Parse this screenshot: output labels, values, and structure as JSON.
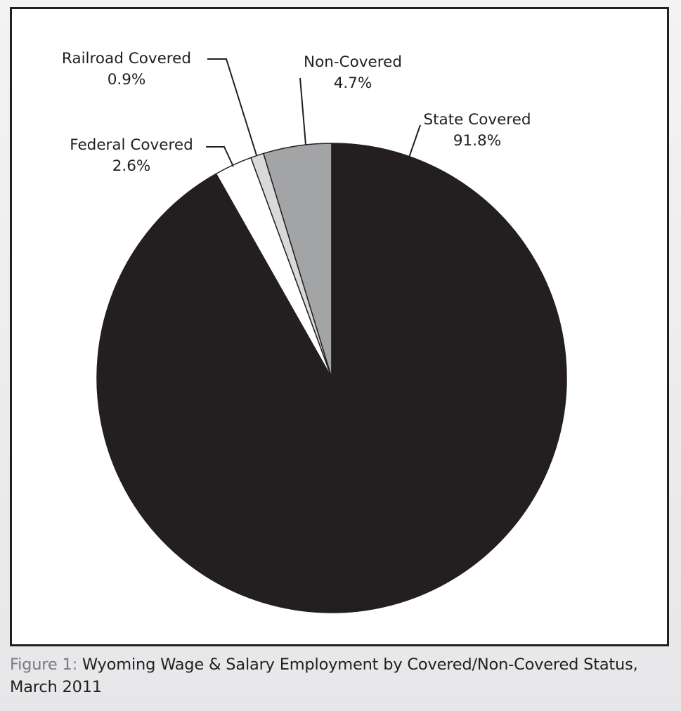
{
  "caption": {
    "figure_label": "Figure 1:",
    "text": "Wyoming Wage & Salary Employment by Covered/Non-Covered Status, March 2011"
  },
  "chart_data": {
    "type": "pie",
    "start": "12 o'clock",
    "direction": "counterclockwise",
    "slices": [
      {
        "name": "Non-Covered",
        "pct_label": "4.7%",
        "value": 4.7,
        "color": "#a3a4a6"
      },
      {
        "name": "Railroad Covered",
        "pct_label": "0.9%",
        "value": 0.9,
        "color": "#d9d9da"
      },
      {
        "name": "Federal Covered",
        "pct_label": "2.6%",
        "value": 2.6,
        "color": "#ffffff"
      },
      {
        "name": "State Covered",
        "pct_label": "91.8%",
        "value": 91.8,
        "color": "#231f20"
      }
    ]
  }
}
